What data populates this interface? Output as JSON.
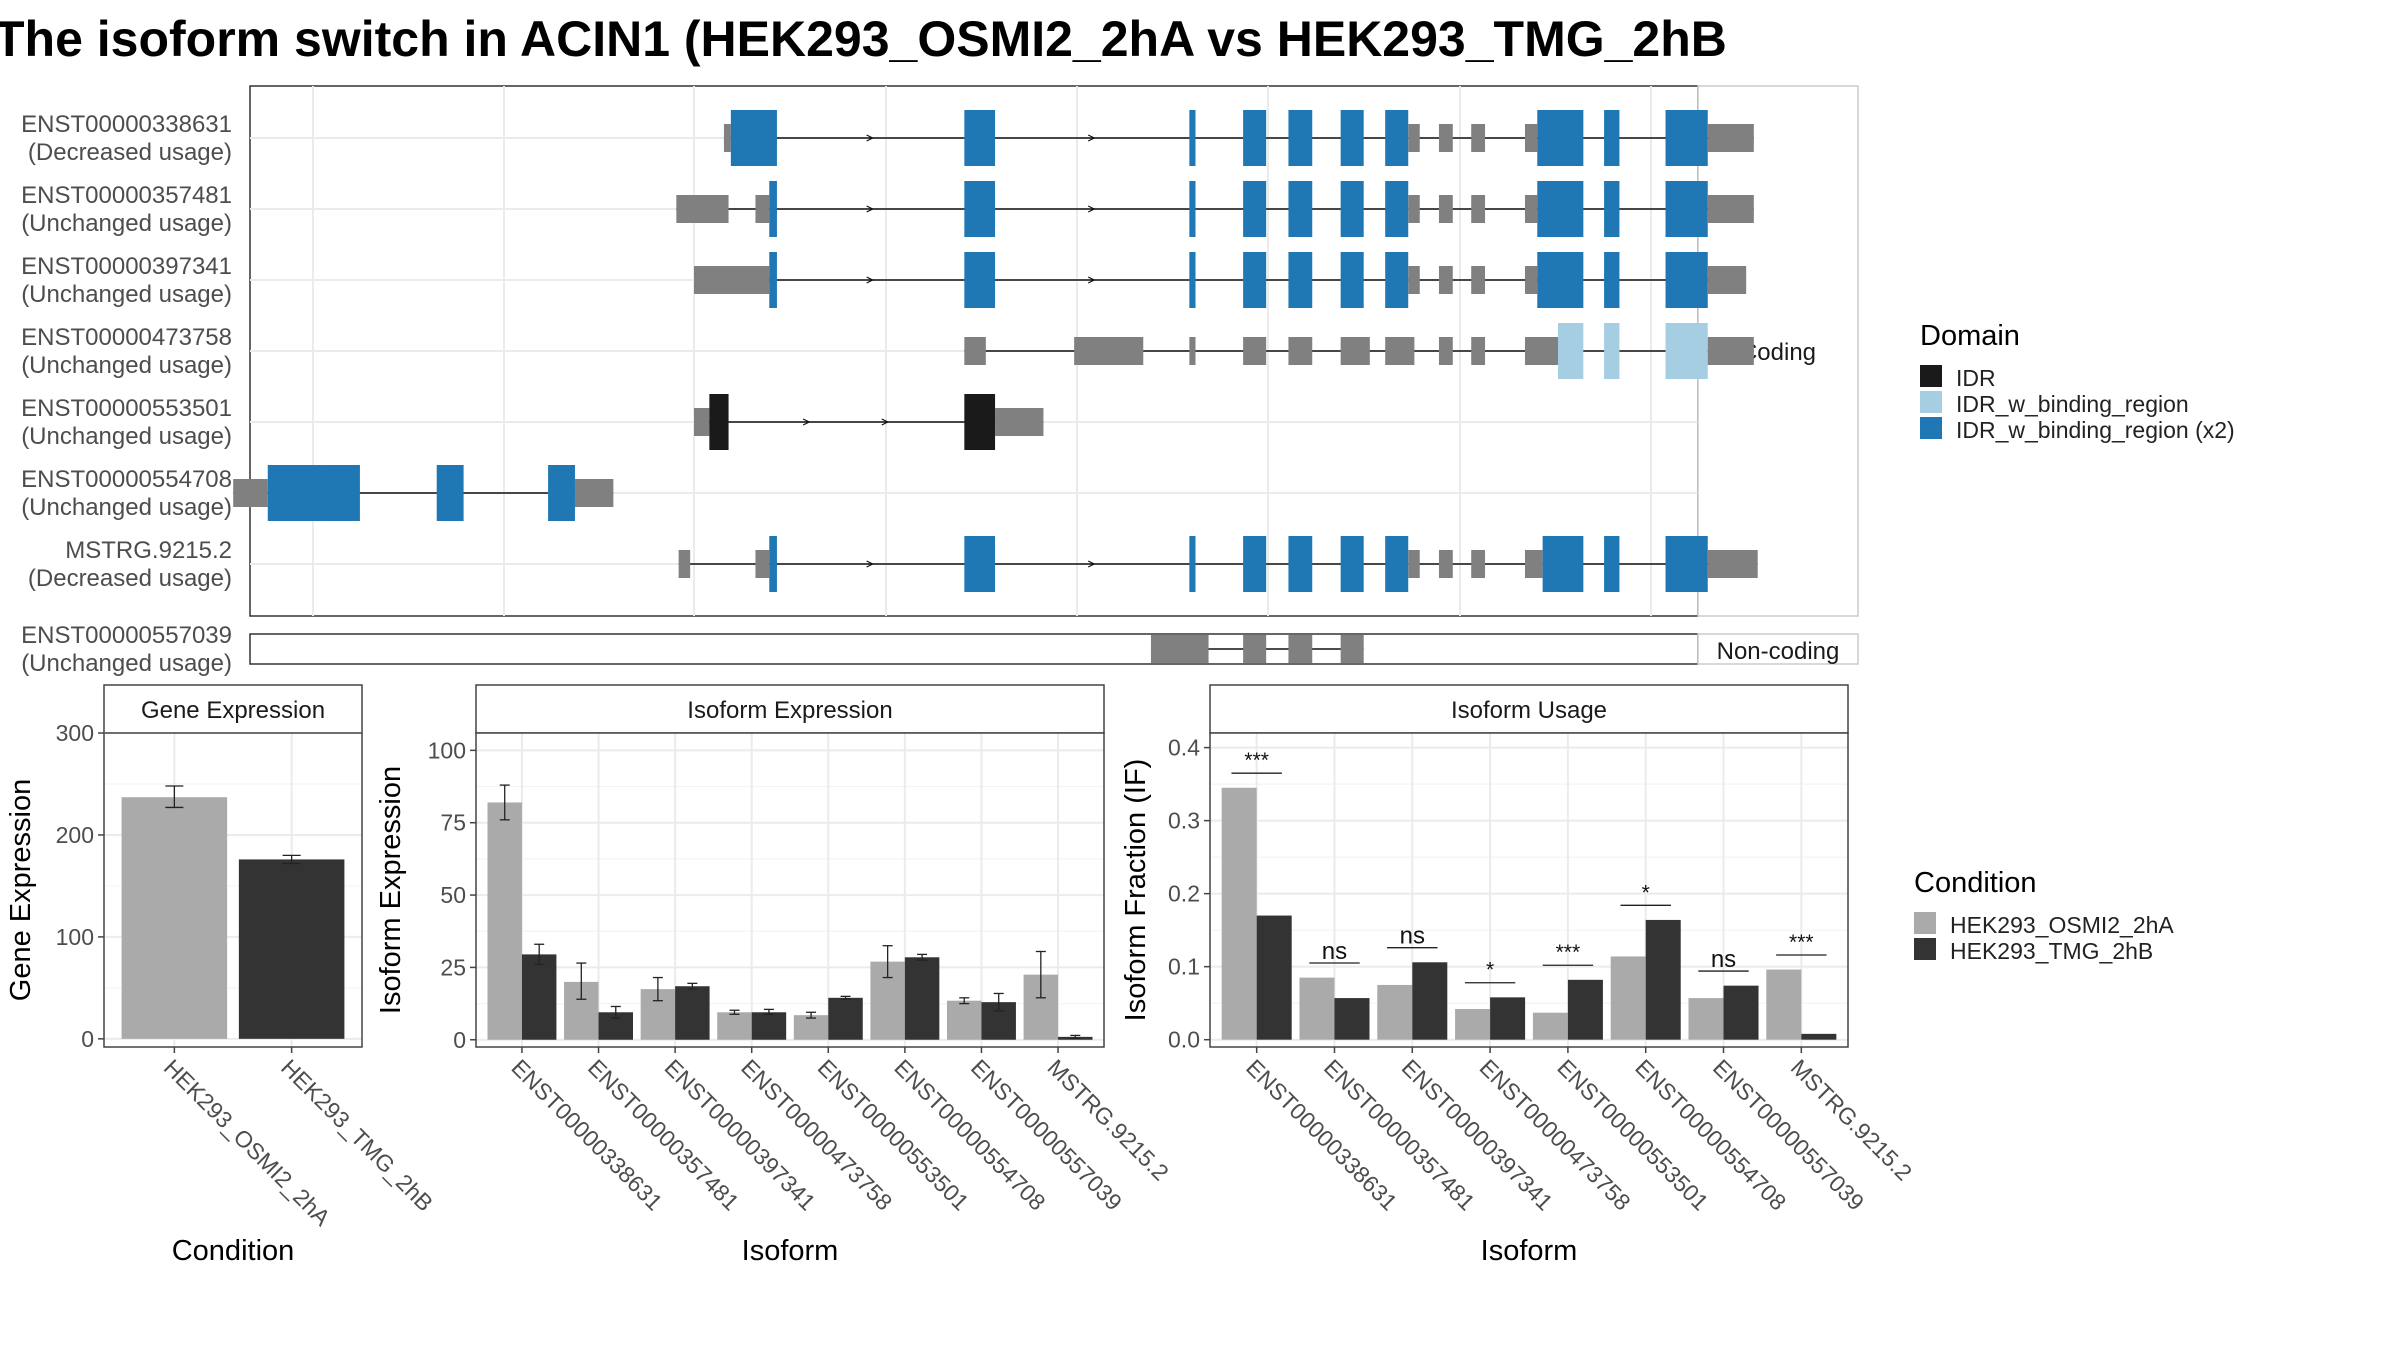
{
  "figure": {
    "title": "The isoform switch in ACIN1 (HEK293_OSMI2_2hA vs HEK293_TMG_2hB"
  },
  "legend_domain": {
    "title": "Domain",
    "items": [
      {
        "label": "IDR",
        "color": "#1a1a1a"
      },
      {
        "label": "IDR_w_binding_region",
        "color": "#a6cee3"
      },
      {
        "label": "IDR_w_binding_region (x2)",
        "color": "#1f78b4"
      }
    ]
  },
  "legend_condition": {
    "title": "Condition",
    "items": [
      {
        "label": "HEK293_OSMI2_2hA",
        "color": "#aaaaaa"
      },
      {
        "label": "HEK293_TMG_2hB",
        "color": "#333333"
      }
    ]
  },
  "chart_data": [
    {
      "type": "gene-structure",
      "facets": [
        "Coding",
        "Non-coding"
      ],
      "intron_arrows": "light",
      "transcripts": [
        {
          "id": "ENST00000338631",
          "usage": "(Decreased usage)",
          "facet": "Coding",
          "exons": [
            [
              0.39,
              0.48,
              "utr"
            ],
            [
              0.48,
              1.08,
              "IDR_w_binding_region (x2)"
            ],
            [
              3.52,
              3.92,
              "IDR_w_binding_region (x2)"
            ],
            [
              6.45,
              6.53,
              "IDR_w_binding_region (x2)"
            ],
            [
              7.15,
              7.45,
              "IDR_w_binding_region (x2)"
            ],
            [
              7.74,
              8.05,
              "IDR_w_binding_region (x2)"
            ],
            [
              8.42,
              8.72,
              "IDR_w_binding_region (x2)"
            ],
            [
              9.0,
              9.3,
              "IDR_w_binding_region (x2)"
            ],
            [
              9.3,
              9.45,
              "utr"
            ],
            [
              9.7,
              9.88,
              "utr"
            ],
            [
              10.12,
              10.3,
              "utr"
            ],
            [
              10.82,
              10.98,
              "utr"
            ],
            [
              10.98,
              11.58,
              "IDR_w_binding_region (x2)"
            ],
            [
              11.85,
              12.05,
              "IDR_w_binding_region (x2)"
            ],
            [
              12.65,
              13.2,
              "IDR_w_binding_region (x2)"
            ],
            [
              13.2,
              13.8,
              "utr"
            ]
          ]
        },
        {
          "id": "ENST00000357481",
          "usage": "(Unchanged usage)",
          "facet": "Coding",
          "exons": [
            [
              -0.23,
              0.45,
              "utr"
            ],
            [
              0.8,
              0.98,
              "utr"
            ],
            [
              0.98,
              1.08,
              "IDR_w_binding_region (x2)"
            ],
            [
              3.52,
              3.92,
              "IDR_w_binding_region (x2)"
            ],
            [
              6.45,
              6.53,
              "IDR_w_binding_region (x2)"
            ],
            [
              7.15,
              7.45,
              "IDR_w_binding_region (x2)"
            ],
            [
              7.74,
              8.05,
              "IDR_w_binding_region (x2)"
            ],
            [
              8.42,
              8.72,
              "IDR_w_binding_region (x2)"
            ],
            [
              9.0,
              9.3,
              "IDR_w_binding_region (x2)"
            ],
            [
              9.3,
              9.45,
              "utr"
            ],
            [
              9.7,
              9.88,
              "utr"
            ],
            [
              10.12,
              10.3,
              "utr"
            ],
            [
              10.82,
              10.98,
              "utr"
            ],
            [
              10.98,
              11.58,
              "IDR_w_binding_region (x2)"
            ],
            [
              11.85,
              12.05,
              "IDR_w_binding_region (x2)"
            ],
            [
              12.65,
              13.2,
              "IDR_w_binding_region (x2)"
            ],
            [
              13.2,
              13.8,
              "utr"
            ]
          ]
        },
        {
          "id": "ENST00000397341",
          "usage": "(Unchanged usage)",
          "facet": "Coding",
          "exons": [
            [
              0.0,
              0.98,
              "utr"
            ],
            [
              0.98,
              1.08,
              "IDR_w_binding_region (x2)"
            ],
            [
              3.52,
              3.92,
              "IDR_w_binding_region (x2)"
            ],
            [
              6.45,
              6.53,
              "IDR_w_binding_region (x2)"
            ],
            [
              7.15,
              7.45,
              "IDR_w_binding_region (x2)"
            ],
            [
              7.74,
              8.05,
              "IDR_w_binding_region (x2)"
            ],
            [
              8.42,
              8.72,
              "IDR_w_binding_region (x2)"
            ],
            [
              9.0,
              9.3,
              "IDR_w_binding_region (x2)"
            ],
            [
              9.3,
              9.45,
              "utr"
            ],
            [
              9.7,
              9.88,
              "utr"
            ],
            [
              10.12,
              10.3,
              "utr"
            ],
            [
              10.82,
              10.98,
              "utr"
            ],
            [
              10.98,
              11.58,
              "IDR_w_binding_region (x2)"
            ],
            [
              11.85,
              12.05,
              "IDR_w_binding_region (x2)"
            ],
            [
              12.65,
              13.2,
              "IDR_w_binding_region (x2)"
            ],
            [
              13.2,
              13.7,
              "utr"
            ]
          ]
        },
        {
          "id": "ENST00000473758",
          "usage": "(Unchanged usage)",
          "facet": "Coding",
          "exons": [
            [
              3.52,
              3.8,
              "utr"
            ],
            [
              4.95,
              5.85,
              "utr"
            ],
            [
              6.45,
              6.53,
              "utr"
            ],
            [
              7.15,
              7.45,
              "utr"
            ],
            [
              7.74,
              8.05,
              "utr"
            ],
            [
              8.42,
              8.8,
              "utr"
            ],
            [
              9.0,
              9.38,
              "utr"
            ],
            [
              9.7,
              9.88,
              "utr"
            ],
            [
              10.12,
              10.3,
              "utr"
            ],
            [
              10.82,
              11.25,
              "utr"
            ],
            [
              11.25,
              11.58,
              "IDR_w_binding_region"
            ],
            [
              11.85,
              12.05,
              "IDR_w_binding_region"
            ],
            [
              12.65,
              13.2,
              "IDR_w_binding_region"
            ],
            [
              13.2,
              13.8,
              "utr"
            ]
          ]
        },
        {
          "id": "ENST00000553501",
          "usage": "(Unchanged usage)",
          "facet": "Coding",
          "exons": [
            [
              0.0,
              0.2,
              "utr"
            ],
            [
              0.2,
              0.45,
              "IDR"
            ],
            [
              3.52,
              3.92,
              "IDR"
            ],
            [
              3.92,
              4.55,
              "utr"
            ]
          ]
        },
        {
          "id": "ENST00000554708",
          "usage": "(Unchanged usage)",
          "facet": "Coding",
          "exons": [
            [
              -6.0,
              -5.55,
              "utr"
            ],
            [
              -5.55,
              -4.85,
              "IDR_w_binding_region (x2)"
            ],
            [
              -4.85,
              -4.35,
              "IDR_w_binding_region (x2)"
            ],
            [
              -3.35,
              -3.0,
              "IDR_w_binding_region (x2)"
            ],
            [
              -1.9,
              -1.55,
              "IDR_w_binding_region (x2)"
            ],
            [
              -1.55,
              -1.05,
              "utr"
            ]
          ]
        },
        {
          "id": "MSTRG.9215.2",
          "usage": "(Decreased usage)",
          "facet": "Coding",
          "exons": [
            [
              -0.2,
              -0.05,
              "utr"
            ],
            [
              0.8,
              0.98,
              "utr"
            ],
            [
              0.98,
              1.08,
              "IDR_w_binding_region (x2)"
            ],
            [
              3.52,
              3.92,
              "IDR_w_binding_region (x2)"
            ],
            [
              6.45,
              6.53,
              "IDR_w_binding_region (x2)"
            ],
            [
              7.15,
              7.45,
              "IDR_w_binding_region (x2)"
            ],
            [
              7.74,
              8.05,
              "IDR_w_binding_region (x2)"
            ],
            [
              8.42,
              8.72,
              "IDR_w_binding_region (x2)"
            ],
            [
              9.0,
              9.3,
              "IDR_w_binding_region (x2)"
            ],
            [
              9.3,
              9.45,
              "utr"
            ],
            [
              9.7,
              9.88,
              "utr"
            ],
            [
              10.12,
              10.3,
              "utr"
            ],
            [
              10.82,
              11.05,
              "utr"
            ],
            [
              11.05,
              11.58,
              "IDR_w_binding_region (x2)"
            ],
            [
              11.85,
              12.05,
              "IDR_w_binding_region (x2)"
            ],
            [
              12.65,
              13.2,
              "IDR_w_binding_region (x2)"
            ],
            [
              13.2,
              13.85,
              "utr"
            ]
          ]
        },
        {
          "id": "ENST00000557039",
          "usage": "(Unchanged usage)",
          "facet": "Non-coding",
          "exons": [
            [
              5.95,
              6.7,
              "utr"
            ],
            [
              7.15,
              7.45,
              "utr"
            ],
            [
              7.74,
              8.05,
              "utr"
            ],
            [
              8.42,
              8.72,
              "utr"
            ]
          ]
        }
      ]
    },
    {
      "type": "bar",
      "title": "Gene Expression",
      "xlabel": "Condition",
      "ylabel": "Gene Expression",
      "categories": [
        "HEK293_OSMI2_2hA",
        "HEK293_TMG_2hB"
      ],
      "values": [
        237,
        176
      ],
      "errors": [
        [
          227,
          248
        ],
        [
          172,
          180
        ]
      ],
      "ylim": [
        -8,
        300
      ],
      "yticks": [
        0,
        100,
        200,
        300
      ]
    },
    {
      "type": "bar",
      "title": "Isoform Expression",
      "xlabel": "Isoform",
      "ylabel": "Isoform Expression",
      "categories": [
        "ENST00000338631",
        "ENST00000357481",
        "ENST00000397341",
        "ENST00000473758",
        "ENST00000553501",
        "ENST00000554708",
        "ENST00000557039",
        "MSTRG.9215.2"
      ],
      "series": [
        {
          "name": "HEK293_OSMI2_2hA",
          "values": [
            82,
            20,
            17.5,
            9.5,
            8.5,
            27,
            13.5,
            22.5
          ],
          "errors": [
            [
              76,
              88
            ],
            [
              14,
              26.5
            ],
            [
              13.5,
              21.5
            ],
            [
              8.8,
              10.2
            ],
            [
              7.5,
              9.5
            ],
            [
              21.5,
              32.5
            ],
            [
              12.5,
              14.5
            ],
            [
              14.5,
              30.5
            ]
          ]
        },
        {
          "name": "HEK293_TMG_2hB",
          "values": [
            29.5,
            9.5,
            18.5,
            9.5,
            14.5,
            28.5,
            13,
            1
          ],
          "errors": [
            [
              26,
              33
            ],
            [
              7.5,
              11.5
            ],
            [
              17.5,
              19.5
            ],
            [
              8.8,
              10.5
            ],
            [
              14,
              15
            ],
            [
              27.5,
              29.5
            ],
            [
              10,
              16
            ],
            [
              0.5,
              1.5
            ]
          ]
        }
      ],
      "ylim": [
        -2.5,
        106
      ],
      "yticks": [
        0,
        25,
        50,
        75,
        100
      ]
    },
    {
      "type": "bar",
      "title": "Isoform Usage",
      "xlabel": "Isoform",
      "ylabel": "Isoform Fraction (IF)",
      "categories": [
        "ENST00000338631",
        "ENST00000357481",
        "ENST00000397341",
        "ENST00000473758",
        "ENST00000553501",
        "ENST00000554708",
        "ENST00000557039",
        "MSTRG.9215.2"
      ],
      "series": [
        {
          "name": "HEK293_OSMI2_2hA",
          "values": [
            0.345,
            0.085,
            0.075,
            0.042,
            0.037,
            0.114,
            0.057,
            0.096
          ]
        },
        {
          "name": "HEK293_TMG_2hB",
          "values": [
            0.17,
            0.057,
            0.106,
            0.058,
            0.082,
            0.164,
            0.074,
            0.008
          ]
        }
      ],
      "significance": [
        "***",
        "ns",
        "ns",
        "*",
        "***",
        "*",
        "ns",
        "***"
      ],
      "ylim": [
        -0.01,
        0.42
      ],
      "yticks": [
        0.0,
        0.1,
        0.2,
        0.3,
        0.4
      ]
    }
  ]
}
